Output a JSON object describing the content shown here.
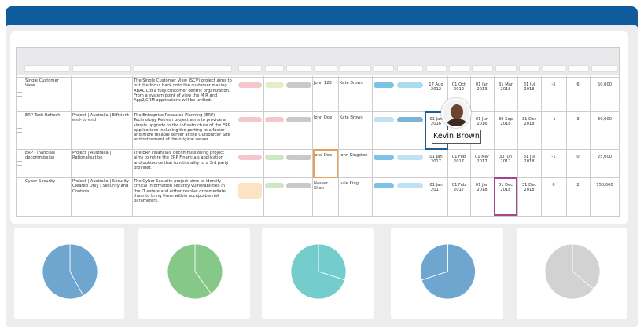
{
  "table": {
    "rows": [
      {
        "cells": [
          "Single Customer View",
          null,
          "The Single Customer View (SCV) project aims to put the focus back onto the customer making ABAC Ltd a fully customer centric organization. From a system point of view the M R and App2/CRM applications will be unified.",
          "John 123",
          "Kate Brown",
          "17 Aug 2012",
          "01 Oct 2012",
          "01 Jan 2013",
          "31 Mar 2018",
          "31 Jul 2018",
          "-5",
          "6",
          "50,000"
        ],
        "pills": [
          "#f6c6cf",
          "#e3efc4",
          "#c9c9c9",
          "#7cc3e6",
          "#a9dcf0"
        ]
      },
      {
        "cells": [
          "ERP Tech Refresh",
          "Project | Australia | Efficient end- to end",
          "The Enterprise Resource Planning (ERP) Technology Refresh project aims to provide a simple upgrade to the infrastructure of the ERP applications including the porting to a faster and more reliable server at the Outsourcer Site and retirement of the original server",
          "John Doe",
          "Kate Brown",
          "01 Jan 2016",
          null,
          "01 Jun 2016",
          "30 Sep 2018",
          "31 Dec 2018",
          "-1",
          "3",
          "30,000"
        ],
        "pills": [
          "#f6c6cf",
          "#f6c6cf",
          "#c9c9c9",
          "#bfe3f3",
          "#7ab4d6"
        ]
      },
      {
        "cells": [
          "ERP - inancials decommission",
          "Project | Australia | Rationalisation",
          "The ERP  Financials decommissioning project aims to retire the ERP  Financials application and outsource that functionality to a 3rd party provider.",
          "Jane Doe",
          "John Kingston",
          "01 Jan 2017",
          "01 Feb 2017",
          "01 Mar 2017",
          "30 Jun 2017",
          "31 Jul 2018",
          "-1",
          "0",
          "25,000"
        ],
        "pills": [
          "#f6c6cf",
          "#cde6c6",
          "#c9c9c9",
          "#7cc3e6",
          "#bfe3f3"
        ]
      },
      {
        "cells": [
          "Cyber Security",
          "Project | Australia | Security Cleared Only | Security and Controls",
          "The Cyber Security project aims to identify critical information security vulnerabilities in the IT estate and either resolve or remediate them to bring them within acceptable risk parameters.",
          "Naseer Shah",
          "Julie King",
          "01 Jan 2017",
          "01 Feb 2017",
          "01 Jan 2018",
          "01 Dec 2018",
          "31 Dec 2018",
          "0",
          "2",
          "750,000"
        ],
        "pills": [
          "#fde3c6",
          "#cde6c6",
          "#c9c9c9",
          "#7cc3e6",
          "#bfe3f3"
        ]
      }
    ]
  },
  "tooltip": {
    "name": "Kevin Brown"
  },
  "pies": [
    {
      "color": "#6ea6d0",
      "values": [
        42,
        58
      ]
    },
    {
      "color": "#86c888",
      "values": [
        40,
        60
      ]
    },
    {
      "color": "#74cccc",
      "values": [
        30,
        70
      ]
    },
    {
      "color": "#6ea6d0",
      "values": [
        70,
        30
      ]
    },
    {
      "color": "#d2d2d2",
      "values": [
        36,
        64
      ]
    }
  ]
}
